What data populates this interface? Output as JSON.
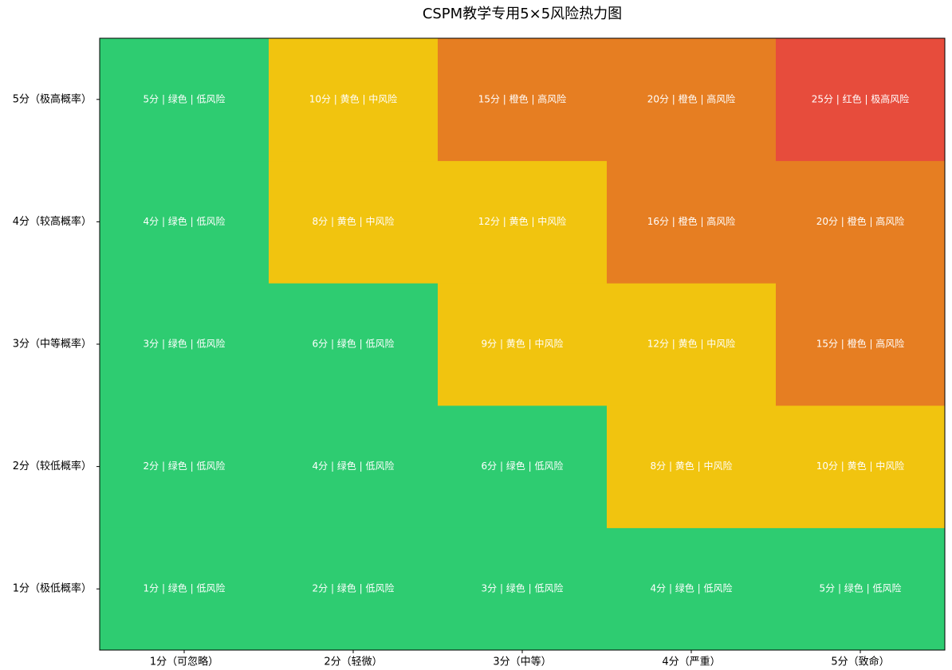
{
  "chart_data": {
    "type": "heatmap",
    "title": "CSPM教学专用5×5风险热力图",
    "x_categories": [
      "1分（可忽略）",
      "2分（轻微）",
      "3分（中等）",
      "4分（严重）",
      "5分（致命）"
    ],
    "y_categories": [
      "1分（极低概率）",
      "2分（较低概率）",
      "3分（中等概率）",
      "4分（较高概率）",
      "5分（极高概率）"
    ],
    "values": [
      [
        1,
        2,
        3,
        4,
        5
      ],
      [
        2,
        4,
        6,
        8,
        10
      ],
      [
        3,
        6,
        9,
        12,
        15
      ],
      [
        4,
        8,
        12,
        16,
        20
      ],
      [
        5,
        10,
        15,
        20,
        25
      ]
    ],
    "value_labels": [
      [
        "1分 | 绿色 | 低风险",
        "2分 | 绿色 | 低风险",
        "3分 | 绿色 | 低风险",
        "4分 | 绿色 | 低风险",
        "5分 | 绿色 | 低风险"
      ],
      [
        "2分 | 绿色 | 低风险",
        "4分 | 绿色 | 低风险",
        "6分 | 绿色 | 低风险",
        "8分 | 黄色 | 中风险",
        "10分 | 黄色 | 中风险"
      ],
      [
        "3分 | 绿色 | 低风险",
        "6分 | 绿色 | 低风险",
        "9分 | 黄色 | 中风险",
        "12分 | 黄色 | 中风险",
        "15分 | 橙色 | 高风险"
      ],
      [
        "4分 | 绿色 | 低风险",
        "8分 | 黄色 | 中风险",
        "12分 | 黄色 | 中风险",
        "16分 | 橙色 | 高风险",
        "20分 | 橙色 | 高风险"
      ],
      [
        "5分 | 绿色 | 低风险",
        "10分 | 黄色 | 中风险",
        "15分 | 橙色 | 高风险",
        "20分 | 橙色 | 高风险",
        "25分 | 红色 | 极高风险"
      ]
    ],
    "colors": [
      [
        "#2ecc71",
        "#2ecc71",
        "#2ecc71",
        "#2ecc71",
        "#2ecc71"
      ],
      [
        "#2ecc71",
        "#2ecc71",
        "#2ecc71",
        "#f1c40f",
        "#f1c40f"
      ],
      [
        "#2ecc71",
        "#2ecc71",
        "#f1c40f",
        "#f1c40f",
        "#e67e22"
      ],
      [
        "#2ecc71",
        "#f1c40f",
        "#f1c40f",
        "#e67e22",
        "#e67e22"
      ],
      [
        "#2ecc71",
        "#f1c40f",
        "#e67e22",
        "#e67e22",
        "#e74c3c"
      ]
    ]
  }
}
